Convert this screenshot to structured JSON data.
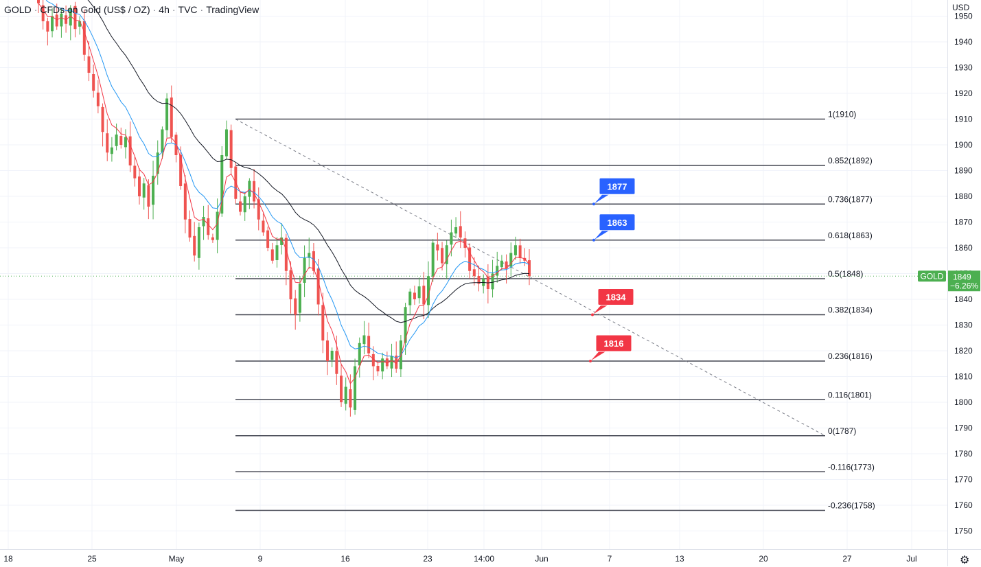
{
  "header": {
    "symbol": "GOLD",
    "description": "CFDs on Gold (US$ / OZ)",
    "interval": "4h",
    "exchange": "TVC",
    "platform": "TradingView"
  },
  "currency": "USD",
  "current_price": {
    "name": "GOLD",
    "value": "1849",
    "change": "−6.26%",
    "color": "#4caf50"
  },
  "colors": {
    "up": "#4caf50",
    "down": "#ef5350",
    "ema_fast": "#f23645",
    "ema_mid": "#2196f3",
    "ema_slow": "#131722",
    "fib": "#434651",
    "callout_blue": "#2962ff",
    "callout_red": "#f23645"
  },
  "chart_data": {
    "type": "candlestick",
    "y_axis": {
      "range": [
        1743,
        1954
      ],
      "ticks": [
        1950,
        1940,
        1930,
        1920,
        1910,
        1900,
        1890,
        1880,
        1870,
        1860,
        1850,
        1840,
        1830,
        1820,
        1810,
        1800,
        1790,
        1780,
        1770,
        1760,
        1750
      ]
    },
    "x_axis": {
      "labels": [
        "18",
        "25",
        "May",
        "9",
        "16",
        "23",
        "14:00",
        "Jun",
        "7",
        "13",
        "20",
        "27",
        "Jul"
      ]
    },
    "fib_levels": [
      {
        "label": "1(1910)",
        "value": 1910
      },
      {
        "label": "0.852(1892)",
        "value": 1892
      },
      {
        "label": "0.736(1877)",
        "value": 1877
      },
      {
        "label": "0.618(1863)",
        "value": 1863
      },
      {
        "label": "0.5(1848)",
        "value": 1848
      },
      {
        "label": "0.382(1834)",
        "value": 1834
      },
      {
        "label": "0.236(1816)",
        "value": 1816
      },
      {
        "label": "0.116(1801)",
        "value": 1801
      },
      {
        "label": "0(1787)",
        "value": 1787
      },
      {
        "label": "-0.116(1773)",
        "value": 1773
      },
      {
        "label": "-0.236(1758)",
        "value": 1758
      }
    ],
    "callouts": [
      {
        "label": "1877",
        "value": 1877,
        "color": "blue"
      },
      {
        "label": "1863",
        "value": 1863,
        "color": "blue"
      },
      {
        "label": "1834",
        "value": 1834,
        "color": "red"
      },
      {
        "label": "1816",
        "value": 1816,
        "color": "red"
      }
    ],
    "trendline": {
      "from": 1910,
      "to": 1787
    },
    "current_line": 1849,
    "close_path": [
      1955,
      1948,
      1944,
      1950,
      1946,
      1951,
      1947,
      1953,
      1945,
      1948,
      1935,
      1928,
      1921,
      1915,
      1905,
      1897,
      1899,
      1904,
      1900,
      1903,
      1892,
      1887,
      1880,
      1885,
      1876,
      1888,
      1897,
      1906,
      1918,
      1903,
      1896,
      1884,
      1871,
      1864,
      1857,
      1868,
      1872,
      1865,
      1863,
      1874,
      1896,
      1906,
      1891,
      1879,
      1874,
      1880,
      1886,
      1878,
      1871,
      1866,
      1860,
      1855,
      1861,
      1864,
      1851,
      1840,
      1834,
      1846,
      1856,
      1858,
      1851,
      1838,
      1824,
      1816,
      1820,
      1811,
      1800,
      1806,
      1798,
      1814,
      1823,
      1826,
      1819,
      1814,
      1812,
      1817,
      1814,
      1818,
      1813,
      1824,
      1837,
      1843,
      1840,
      1845,
      1838,
      1849,
      1862,
      1859,
      1854,
      1861,
      1866,
      1868,
      1864,
      1860,
      1851,
      1849,
      1846,
      1848,
      1844,
      1850,
      1853,
      1855,
      1852,
      1858,
      1861,
      1856,
      1855,
      1849
    ]
  }
}
